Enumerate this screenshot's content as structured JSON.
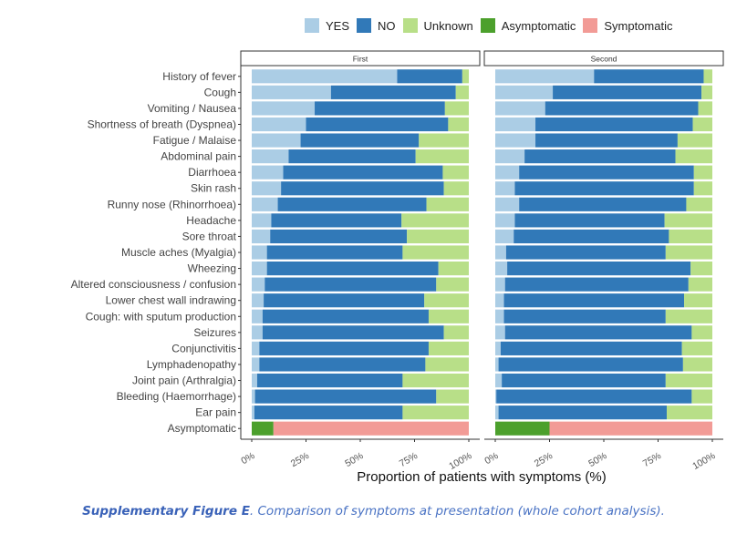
{
  "legend": [
    {
      "label": "YES",
      "color": "#abcde5"
    },
    {
      "label": "NO",
      "color": "#3179b8"
    },
    {
      "label": "Unknown",
      "color": "#b8df88"
    },
    {
      "label": "Asymptomatic",
      "color": "#4ca02c"
    },
    {
      "label": "Symptomatic",
      "color": "#f29b96"
    }
  ],
  "caption": {
    "bold": "Supplementary Figure E",
    "text": ". Comparison of symptoms at presentation (whole cohort analysis)."
  },
  "chart_data": {
    "type": "bar",
    "orientation": "horizontal",
    "stacked": true,
    "xlabel": "Proportion of patients with symptoms  (%)",
    "ylabel": "",
    "xlim": [
      0,
      100
    ],
    "xticks": [
      "0%",
      "25%",
      "50%",
      "75%",
      "100%"
    ],
    "grid": false,
    "legend_position": "top",
    "categories": [
      "History of fever",
      "Cough",
      "Vomiting / Nausea",
      "Shortness of breath (Dyspnea)",
      "Fatigue / Malaise",
      "Abdominal pain",
      "Diarrhoea",
      "Skin rash",
      "Runny nose (Rhinorrhoea)",
      "Headache",
      "Sore throat",
      "Muscle aches (Myalgia)",
      "Wheezing",
      "Altered consciousness / confusion",
      "Lower chest wall indrawing",
      "Cough: with sputum production",
      "Seizures",
      "Conjunctivitis",
      "Lymphadenopathy",
      "Joint pain (Arthralgia)",
      "Bleeding (Haemorrhage)",
      "Ear pain",
      "Asymptomatic"
    ],
    "panels": [
      {
        "title": "First",
        "series": [
          {
            "name": "YES",
            "values": [
              67,
              36.5,
              29,
              25,
              22.5,
              17,
              14.5,
              13.5,
              12,
              9,
              8.5,
              7,
              7,
              6,
              5.5,
              5,
              5,
              3.5,
              3.5,
              2.5,
              1.5,
              1.2,
              0
            ]
          },
          {
            "name": "NO",
            "values": [
              30,
              57.5,
              60,
              65.5,
              54.5,
              58.5,
              73.5,
              75,
              68.5,
              60,
              63,
              62.5,
              79,
              79,
              74,
              76.5,
              83.5,
              78,
              76.5,
              67,
              83.5,
              68.3,
              0
            ]
          },
          {
            "name": "Unknown",
            "values": [
              3,
              6,
              11,
              9.5,
              23,
              24.5,
              12,
              11.5,
              19.5,
              31,
              28.5,
              30.5,
              14,
              15,
              20.5,
              18.5,
              11.5,
              18.5,
              20,
              30.5,
              15,
              30.5,
              0
            ]
          },
          {
            "name": "Asymptomatic",
            "values": [
              0,
              0,
              0,
              0,
              0,
              0,
              0,
              0,
              0,
              0,
              0,
              0,
              0,
              0,
              0,
              0,
              0,
              0,
              0,
              0,
              0,
              0,
              10
            ]
          },
          {
            "name": "Symptomatic",
            "values": [
              0,
              0,
              0,
              0,
              0,
              0,
              0,
              0,
              0,
              0,
              0,
              0,
              0,
              0,
              0,
              0,
              0,
              0,
              0,
              0,
              0,
              0,
              90
            ]
          }
        ]
      },
      {
        "title": "Second",
        "series": [
          {
            "name": "YES",
            "values": [
              45.5,
              26.5,
              23,
              18.5,
              18.5,
              13.5,
              11,
              9,
              11,
              9,
              8.5,
              5,
              5.5,
              4.5,
              4,
              4,
              4.5,
              2.5,
              1.5,
              3,
              0.5,
              1.5,
              0
            ]
          },
          {
            "name": "NO",
            "values": [
              50.5,
              68.5,
              70.5,
              72.5,
              65.5,
              69.5,
              80.5,
              82.5,
              77,
              69,
              71.5,
              73.5,
              84.5,
              84.5,
              83,
              74.5,
              86,
              83.5,
              85,
              75.5,
              90,
              77.5,
              0
            ]
          },
          {
            "name": "Unknown",
            "values": [
              4,
              5,
              6.5,
              9,
              16,
              17,
              8.5,
              8.5,
              12,
              22,
              20,
              21.5,
              10,
              11,
              13,
              21.5,
              9.5,
              14,
              13.5,
              21.5,
              9.5,
              21,
              0
            ]
          },
          {
            "name": "Asymptomatic",
            "values": [
              0,
              0,
              0,
              0,
              0,
              0,
              0,
              0,
              0,
              0,
              0,
              0,
              0,
              0,
              0,
              0,
              0,
              0,
              0,
              0,
              0,
              0,
              25
            ]
          },
          {
            "name": "Symptomatic",
            "values": [
              0,
              0,
              0,
              0,
              0,
              0,
              0,
              0,
              0,
              0,
              0,
              0,
              0,
              0,
              0,
              0,
              0,
              0,
              0,
              0,
              0,
              0,
              75
            ]
          }
        ]
      }
    ]
  }
}
